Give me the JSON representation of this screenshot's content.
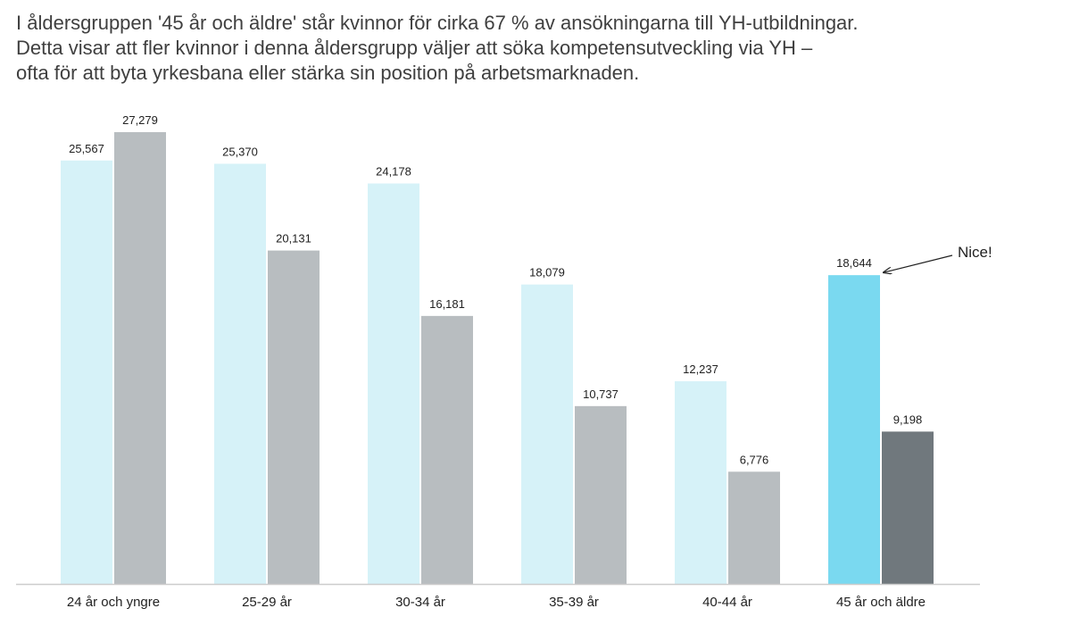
{
  "chart_data": {
    "type": "bar",
    "title_lines": [
      "I åldersgruppen '45 år och äldre' står kvinnor för cirka 67 % av ansökningarna till YH-utbildningar.",
      "Detta visar att fler kvinnor i denna åldersgrupp väljer att söka kompetensutveckling via YH –",
      "ofta för att byta yrkesbana eller stärka sin position på arbetsmarknaden."
    ],
    "categories": [
      "24 år och yngre",
      "25-29 år",
      "30-34 år",
      "35-39 år",
      "40-44 år",
      "45 år och äldre"
    ],
    "series": [
      {
        "values": [
          25567,
          25370,
          24178,
          18079,
          12237,
          18644
        ],
        "labels": [
          "25,567",
          "25,370",
          "24,178",
          "18,079",
          "12,237",
          "18,644"
        ],
        "color": "#d6f2f8",
        "highlight_color": "#7ad9f0"
      },
      {
        "values": [
          27279,
          20131,
          16181,
          10737,
          6776,
          9198
        ],
        "labels": [
          "27,279",
          "20,131",
          "16,181",
          "10,737",
          "6,776",
          "9,198"
        ],
        "color": "#b8bdc0",
        "highlight_color": "#70787d"
      }
    ],
    "highlight_category": "45 år och äldre",
    "ylim": [
      0,
      27279
    ],
    "grid": false,
    "legend": "none",
    "annotation": {
      "text": "Nice!",
      "target_category": "45 år och äldre",
      "target_series": 0
    },
    "axis_color": "#cccccc"
  }
}
